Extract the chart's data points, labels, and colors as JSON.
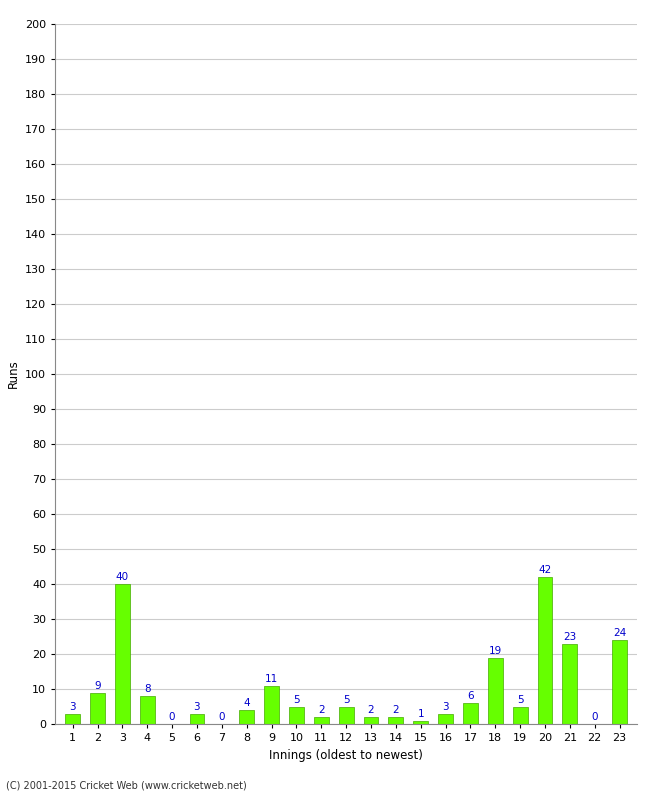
{
  "title": "",
  "xlabel": "Innings (oldest to newest)",
  "ylabel": "Runs",
  "categories": [
    1,
    2,
    3,
    4,
    5,
    6,
    7,
    8,
    9,
    10,
    11,
    12,
    13,
    14,
    15,
    16,
    17,
    18,
    19,
    20,
    21,
    22,
    23
  ],
  "values": [
    3,
    9,
    40,
    8,
    0,
    3,
    0,
    4,
    11,
    5,
    2,
    5,
    2,
    2,
    1,
    3,
    6,
    19,
    5,
    42,
    23,
    0,
    24
  ],
  "bar_color": "#66ff00",
  "bar_edge_color": "#44aa00",
  "label_color": "#0000cc",
  "background_color": "#ffffff",
  "ylim": [
    0,
    200
  ],
  "yticks": [
    0,
    10,
    20,
    30,
    40,
    50,
    60,
    70,
    80,
    90,
    100,
    110,
    120,
    130,
    140,
    150,
    160,
    170,
    180,
    190,
    200
  ],
  "grid_color": "#cccccc",
  "footer": "(C) 2001-2015 Cricket Web (www.cricketweb.net)",
  "label_fontsize": 7.5,
  "axis_label_fontsize": 8.5,
  "tick_fontsize": 8,
  "title_fontsize": 10
}
